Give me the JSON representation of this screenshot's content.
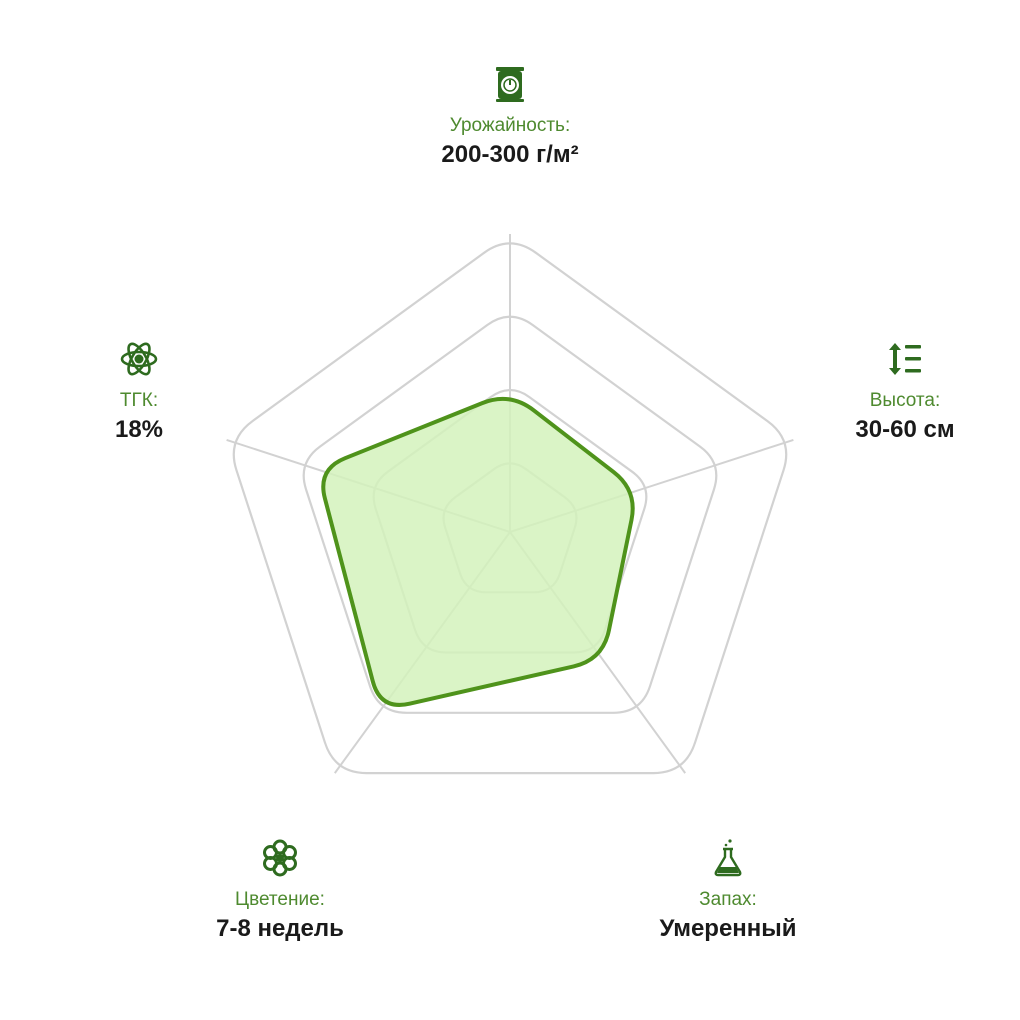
{
  "chart_data": {
    "type": "radar",
    "levels": 4,
    "max": 100,
    "axes": [
      {
        "key": "yield",
        "label": "Урожайность:",
        "value_text": "200-300 г/м²",
        "value": 47,
        "icon": "scale-icon"
      },
      {
        "key": "height",
        "label": "Высота:",
        "value_text": "30-60 см",
        "value": 45,
        "icon": "height-icon"
      },
      {
        "key": "smell",
        "label": "Запах:",
        "value_text": "Умеренный",
        "value": 53,
        "icon": "flask-icon"
      },
      {
        "key": "flowering",
        "label": "Цветение:",
        "value_text": "7-8 недель",
        "value": 74,
        "icon": "flower-icon"
      },
      {
        "key": "thc",
        "label": "ТГК:",
        "value_text": "18%",
        "value": 68,
        "icon": "atom-icon"
      }
    ],
    "colors": {
      "grid": "#d2d2d2",
      "fill": "#d3f2bc",
      "stroke": "#4f931b",
      "label": "#4e8a2f",
      "icon": "#2e6b1f"
    }
  }
}
